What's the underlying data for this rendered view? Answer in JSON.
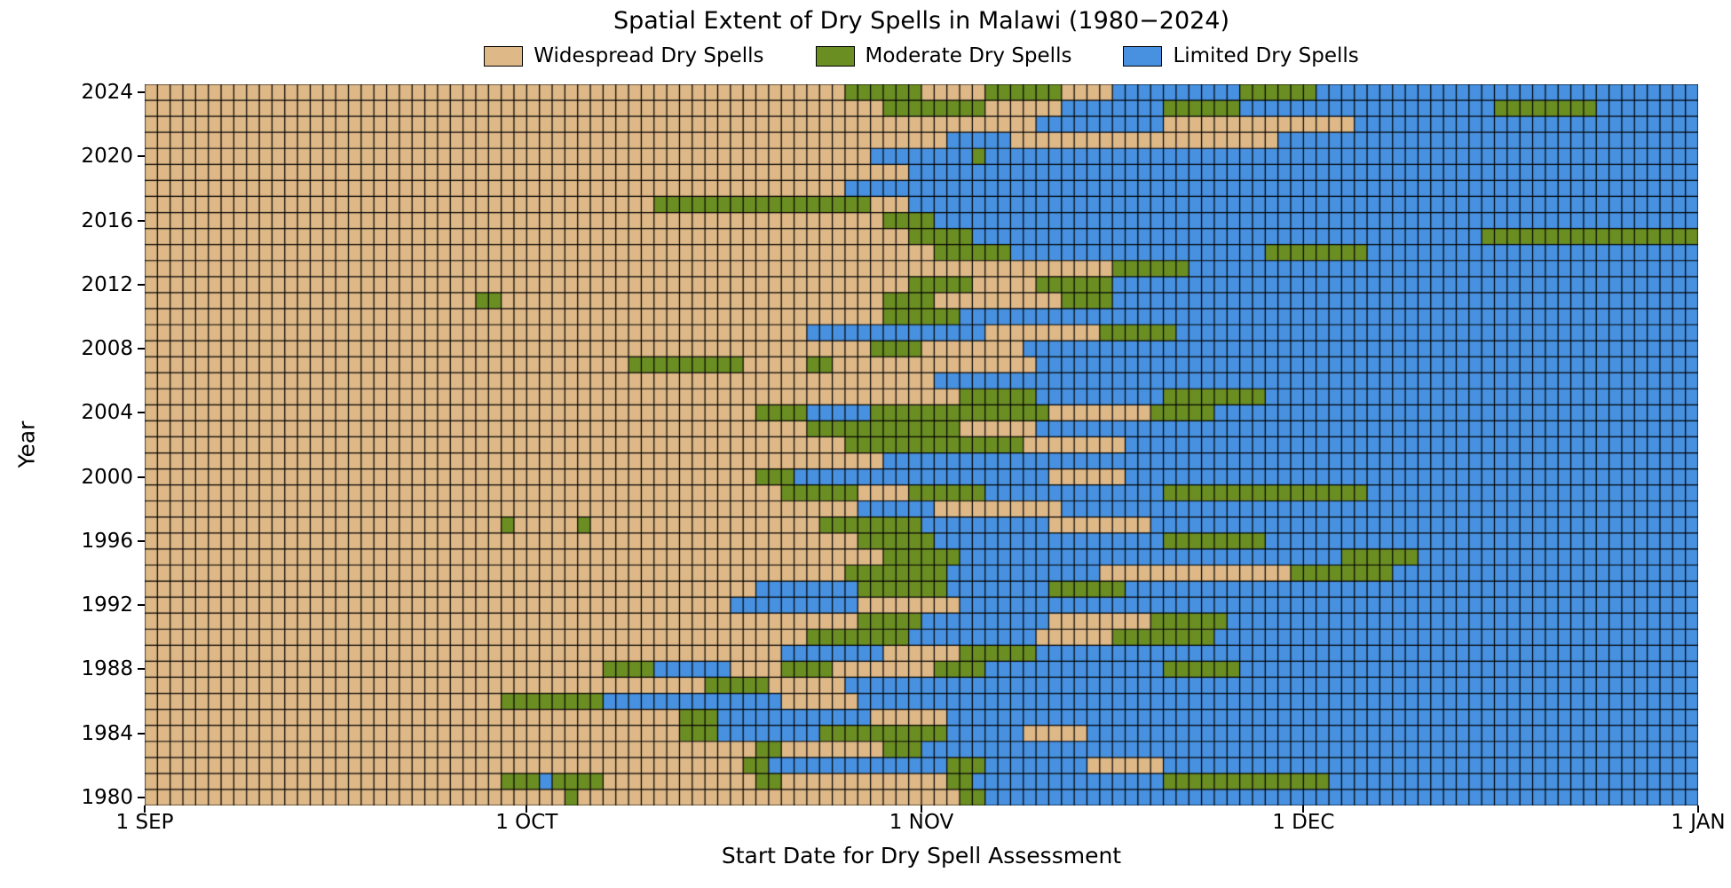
{
  "title": "Spatial Extent of Dry Spells in Malawi (1980−2024)",
  "xlabel": "Start Date for Dry Spell Assessment",
  "ylabel": "Year",
  "legend": [
    {
      "key": "W",
      "label": "Widespread Dry Spells",
      "color": "#DEB887"
    },
    {
      "key": "M",
      "label": "Moderate Dry Spells",
      "color": "#6B8E23"
    },
    {
      "key": "L",
      "label": "Limited Dry Spells",
      "color": "#4791E0"
    }
  ],
  "chart_data": {
    "type": "heatmap",
    "title": "Spatial Extent of Dry Spells in Malawi (1980−2024)",
    "xlabel": "Start Date for Dry Spell Assessment",
    "ylabel": "Year",
    "n_days": 122,
    "grid_color": "#000000",
    "axis_color": "#000000",
    "x_ticks": [
      {
        "label": "1 SEP",
        "day": 0
      },
      {
        "label": "1 OCT",
        "day": 30
      },
      {
        "label": "1 NOV",
        "day": 61
      },
      {
        "label": "1 DEC",
        "day": 91
      },
      {
        "label": "1 JAN",
        "day": 122
      }
    ],
    "y_ticks": [
      2024,
      2020,
      2016,
      2012,
      2008,
      2004,
      2000,
      1996,
      1992,
      1988,
      1984,
      1980
    ],
    "categories": {
      "W": "Widespread Dry Spells",
      "M": "Moderate Dry Spells",
      "L": "Limited Dry Spells"
    },
    "rows": [
      {
        "year": 2024,
        "rle": "W55,M6,W5,M6,W4,L10,M6,L30"
      },
      {
        "year": 2023,
        "rle": "W58,M8,W6,L8,M6,L20,M8,L8"
      },
      {
        "year": 2022,
        "rle": "W70,L10,W15,L27"
      },
      {
        "year": 2021,
        "rle": "W63,L5,W21,L33"
      },
      {
        "year": 2020,
        "rle": "W57,L8,M1,L56"
      },
      {
        "year": 2019,
        "rle": "W60,L62"
      },
      {
        "year": 2018,
        "rle": "W55,L67"
      },
      {
        "year": 2017,
        "rle": "W40,M17,W3,L62"
      },
      {
        "year": 2016,
        "rle": "W58,M4,L60"
      },
      {
        "year": 2015,
        "rle": "W60,M5,L40,M17"
      },
      {
        "year": 2014,
        "rle": "W62,M6,L20,M8,L26"
      },
      {
        "year": 2013,
        "rle": "W76,M6,L40"
      },
      {
        "year": 2012,
        "rle": "W60,M5,W5,M6,L46"
      },
      {
        "year": 2011,
        "rle": "W26,M2,W30,M4,W10,M4,L46"
      },
      {
        "year": 2010,
        "rle": "W58,M6,L58"
      },
      {
        "year": 2009,
        "rle": "W52,L14,W9,M6,L41"
      },
      {
        "year": 2008,
        "rle": "W57,M4,W8,L53"
      },
      {
        "year": 2007,
        "rle": "W38,M9,W5,M2,W16,L52"
      },
      {
        "year": 2006,
        "rle": "W62,L60"
      },
      {
        "year": 2005,
        "rle": "W64,M6,L10,M8,L34"
      },
      {
        "year": 2004,
        "rle": "W48,M4,L5,M14,W8,M5,L38"
      },
      {
        "year": 2003,
        "rle": "W52,M12,W6,L52"
      },
      {
        "year": 2002,
        "rle": "W55,M14,W8,L45"
      },
      {
        "year": 2001,
        "rle": "W58,L64"
      },
      {
        "year": 2000,
        "rle": "W48,M3,L20,W6,L45"
      },
      {
        "year": 1999,
        "rle": "W50,M6,W4,M6,L14,M16,L26"
      },
      {
        "year": 1998,
        "rle": "W56,L6,W10,L50"
      },
      {
        "year": 1997,
        "rle": "W28,M1,W5,M1,W18,M8,L10,W8,L43"
      },
      {
        "year": 1996,
        "rle": "W56,M6,L18,M8,L34"
      },
      {
        "year": 1995,
        "rle": "W58,M6,L30,M6,L22"
      },
      {
        "year": 1994,
        "rle": "W55,M8,L12,W15,M8,L24"
      },
      {
        "year": 1993,
        "rle": "W48,L8,M7,L8,M6,L45"
      },
      {
        "year": 1992,
        "rle": "W46,L10,W8,L58"
      },
      {
        "year": 1991,
        "rle": "W56,M5,L10,W8,M6,L37"
      },
      {
        "year": 1990,
        "rle": "W52,M8,L10,W6,M8,L38"
      },
      {
        "year": 1989,
        "rle": "W50,L8,W6,M6,L52"
      },
      {
        "year": 1988,
        "rle": "W36,M4,L6,W4,M4,W8,M4,L14,M6,L36"
      },
      {
        "year": 1987,
        "rle": "W44,M5,W6,L67"
      },
      {
        "year": 1986,
        "rle": "W28,M8,L14,W6,L66"
      },
      {
        "year": 1985,
        "rle": "W42,M3,L12,W6,L59"
      },
      {
        "year": 1984,
        "rle": "W42,M3,L8,M10,L6,W5,L48"
      },
      {
        "year": 1983,
        "rle": "W48,M2,W8,M3,L61"
      },
      {
        "year": 1982,
        "rle": "W47,M2,L14,M3,L8,W6,L42"
      },
      {
        "year": 1981,
        "rle": "W28,M3,L1,M4,W12,M2,W13,M2,L15,M13,L29"
      },
      {
        "year": 1980,
        "rle": "W33,M1,W30,M2,L56"
      }
    ]
  }
}
